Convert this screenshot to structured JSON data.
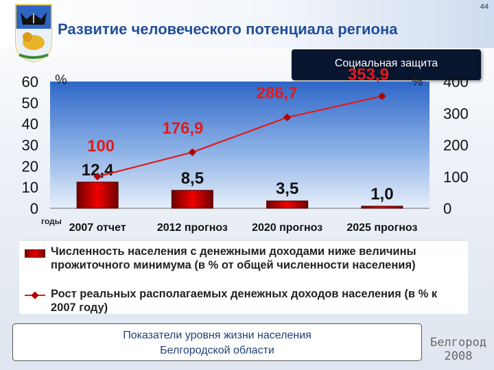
{
  "page_number": "44",
  "title": "Развитие человеческого потенциала региона",
  "section": "Социальная защита",
  "left_axis_unit": "%",
  "right_axis_unit": "%",
  "x_axis_unit": "годы",
  "legend": {
    "bar_text": "Численность населения с денежными доходами ниже величины прожиточного минимума (в % от общей численности населения)",
    "line_text": "Рост реальных располагаемых денежных доходов населения (в % к 2007 году)"
  },
  "footer": {
    "line1": "Показатели уровня жизни населения",
    "line2": "Белгородской области"
  },
  "logo": {
    "line1": "Белгород",
    "line2": "2008"
  },
  "colors": {
    "title": "#1f4e9c",
    "bar": "#d40000",
    "line": "#e01b1b",
    "marker": "#b00000"
  },
  "emblem_icon": "belgorod-coat-of-arms-icon",
  "chart_data": {
    "type": "bar+line",
    "categories": [
      "2007 отчет",
      "2012 прогноз",
      "2020 прогноз",
      "2025 прогноз"
    ],
    "bar_series": {
      "values": [
        12.4,
        8.5,
        3.5,
        1.0
      ],
      "labels": [
        "12,4",
        "8,5",
        "3,5",
        "1,0"
      ],
      "axis": "left",
      "ylim": [
        0,
        60
      ],
      "ticks": [
        0,
        10,
        20,
        30,
        40,
        50,
        60
      ]
    },
    "line_series": {
      "values": [
        100,
        176.9,
        286.7,
        353.9
      ],
      "labels": [
        "100",
        "176,9",
        "286,7",
        "353,9"
      ],
      "axis": "right",
      "ylim": [
        0,
        400
      ],
      "ticks": [
        0,
        100,
        200,
        300,
        400
      ]
    },
    "grid": false,
    "legend_position": "bottom"
  }
}
